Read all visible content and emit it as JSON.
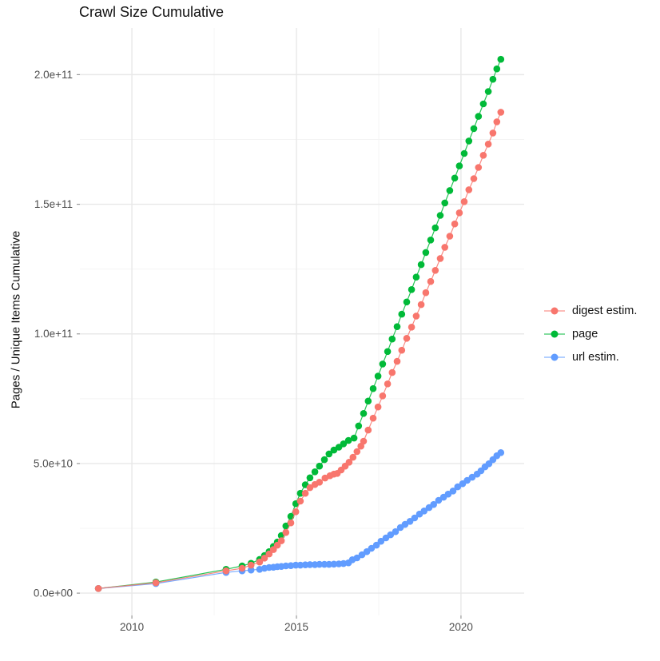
{
  "chart_data": {
    "type": "scatter",
    "title": "Crawl Size Cumulative",
    "xlabel": "",
    "ylabel": "Pages / Unique Items Cumulative",
    "xlim": [
      2008.42,
      2021.92
    ],
    "ylim": [
      -8600000000.0,
      218000000000.0
    ],
    "grid": true,
    "legend_position": "right",
    "x_ticks": [
      {
        "value": 2010,
        "label": "2010"
      },
      {
        "value": 2015,
        "label": "2015"
      },
      {
        "value": 2020,
        "label": "2020"
      }
    ],
    "x_minor_ticks": [
      2012.5,
      2017.5
    ],
    "y_ticks": [
      {
        "value": 0,
        "label": "0.0e+00"
      },
      {
        "value": 50000000000.0,
        "label": "5.0e+10"
      },
      {
        "value": 100000000000.0,
        "label": "1.0e+11"
      },
      {
        "value": 150000000000.0,
        "label": "1.5e+11"
      },
      {
        "value": 200000000000.0,
        "label": "2.0e+11"
      }
    ],
    "y_minor_ticks": [
      25000000000.0,
      75000000000.0,
      125000000000.0,
      175000000000.0
    ],
    "colors": {
      "digest": "#F8766D",
      "page": "#00BA38",
      "url": "#619CFF",
      "grid_major": "#e8e8e8",
      "grid_minor": "#f4f4f4",
      "tick": "#999999",
      "tick_label": "#4d4d4d",
      "text": "#111111"
    },
    "legend": [
      {
        "label": "digest estim.",
        "color": "#F8766D"
      },
      {
        "label": "page",
        "color": "#00BA38"
      },
      {
        "label": "url estim.",
        "color": "#619CFF"
      }
    ],
    "series": [
      {
        "name": "page",
        "color": "#00BA38",
        "points": [
          [
            2008.98,
            1800000000.0
          ],
          [
            2010.73,
            4300000000.0
          ],
          [
            2012.86,
            9200000000.0
          ],
          [
            2013.35,
            10500000000.0
          ],
          [
            2013.62,
            11500000000.0
          ],
          [
            2013.88,
            13000000000.0
          ],
          [
            2014.03,
            14500000000.0
          ],
          [
            2014.17,
            16000000000.0
          ],
          [
            2014.3,
            18000000000.0
          ],
          [
            2014.42,
            19700000000.0
          ],
          [
            2014.54,
            22200000000.0
          ],
          [
            2014.68,
            25900000000.0
          ],
          [
            2014.83,
            29600000000.0
          ],
          [
            2014.98,
            34500000000.0
          ],
          [
            2015.12,
            38500000000.0
          ],
          [
            2015.27,
            41800000000.0
          ],
          [
            2015.41,
            44500000000.0
          ],
          [
            2015.56,
            46800000000.0
          ],
          [
            2015.7,
            49000000000.0
          ],
          [
            2015.85,
            51500000000.0
          ],
          [
            2015.99,
            53700000000.0
          ],
          [
            2016.14,
            55200000000.0
          ],
          [
            2016.29,
            56300000000.0
          ],
          [
            2016.43,
            57600000000.0
          ],
          [
            2016.58,
            58900000000.0
          ],
          [
            2016.75,
            59800000000.0
          ],
          [
            2016.89,
            64500000000.0
          ],
          [
            2017.04,
            69300000000.0
          ],
          [
            2017.18,
            74100000000.0
          ],
          [
            2017.33,
            78900000000.0
          ],
          [
            2017.48,
            83700000000.0
          ],
          [
            2017.62,
            88400000000.0
          ],
          [
            2017.77,
            93200000000.0
          ],
          [
            2017.91,
            98000000000.0
          ],
          [
            2018.06,
            102800000000.0
          ],
          [
            2018.2,
            107600000000.0
          ],
          [
            2018.35,
            112300000000.0
          ],
          [
            2018.5,
            117100000000.0
          ],
          [
            2018.64,
            121900000000.0
          ],
          [
            2018.79,
            126700000000.0
          ],
          [
            2018.93,
            131400000000.0
          ],
          [
            2019.08,
            136200000000.0
          ],
          [
            2019.22,
            140900000000.0
          ],
          [
            2019.37,
            145700000000.0
          ],
          [
            2019.51,
            150500000000.0
          ],
          [
            2019.66,
            155300000000.0
          ],
          [
            2019.81,
            160100000000.0
          ],
          [
            2019.95,
            164800000000.0
          ],
          [
            2020.1,
            169600000000.0
          ],
          [
            2020.24,
            174400000000.0
          ],
          [
            2020.39,
            179200000000.0
          ],
          [
            2020.53,
            183900000000.0
          ],
          [
            2020.68,
            188700000000.0
          ],
          [
            2020.83,
            193500000000.0
          ],
          [
            2020.97,
            198200000000.0
          ],
          [
            2021.09,
            202200000000.0
          ],
          [
            2021.21,
            205900000000.0
          ]
        ]
      },
      {
        "name": "url estim.",
        "color": "#619CFF",
        "points": [
          [
            2008.98,
            1800000000.0
          ],
          [
            2010.73,
            3700000000.0
          ],
          [
            2012.86,
            8000000000.0
          ],
          [
            2013.35,
            8600000000.0
          ],
          [
            2013.62,
            8900000000.0
          ],
          [
            2013.88,
            9200000000.0
          ],
          [
            2014.03,
            9600000000.0
          ],
          [
            2014.17,
            9900000000.0
          ],
          [
            2014.3,
            10000000000.0
          ],
          [
            2014.42,
            10200000000.0
          ],
          [
            2014.54,
            10300000000.0
          ],
          [
            2014.68,
            10500000000.0
          ],
          [
            2014.83,
            10600000000.0
          ],
          [
            2014.98,
            10800000000.0
          ],
          [
            2015.12,
            10800000000.0
          ],
          [
            2015.27,
            10900000000.0
          ],
          [
            2015.41,
            11000000000.0
          ],
          [
            2015.56,
            11000000000.0
          ],
          [
            2015.7,
            11100000000.0
          ],
          [
            2015.85,
            11100000000.0
          ],
          [
            2015.99,
            11100000000.0
          ],
          [
            2016.14,
            11200000000.0
          ],
          [
            2016.29,
            11300000000.0
          ],
          [
            2016.43,
            11400000000.0
          ],
          [
            2016.58,
            11700000000.0
          ],
          [
            2016.7,
            12900000000.0
          ],
          [
            2016.84,
            13600000000.0
          ],
          [
            2016.99,
            14800000000.0
          ],
          [
            2017.14,
            16000000000.0
          ],
          [
            2017.28,
            17300000000.0
          ],
          [
            2017.43,
            18500000000.0
          ],
          [
            2017.57,
            20000000000.0
          ],
          [
            2017.72,
            21300000000.0
          ],
          [
            2017.86,
            22500000000.0
          ],
          [
            2018.01,
            23700000000.0
          ],
          [
            2018.16,
            25300000000.0
          ],
          [
            2018.3,
            26500000000.0
          ],
          [
            2018.45,
            27700000000.0
          ],
          [
            2018.59,
            29000000000.0
          ],
          [
            2018.74,
            30500000000.0
          ],
          [
            2018.88,
            31700000000.0
          ],
          [
            2019.03,
            33000000000.0
          ],
          [
            2019.17,
            34200000000.0
          ],
          [
            2019.32,
            35800000000.0
          ],
          [
            2019.47,
            37000000000.0
          ],
          [
            2019.61,
            38200000000.0
          ],
          [
            2019.76,
            39400000000.0
          ],
          [
            2019.9,
            41000000000.0
          ],
          [
            2020.05,
            42200000000.0
          ],
          [
            2020.19,
            43500000000.0
          ],
          [
            2020.34,
            44700000000.0
          ],
          [
            2020.49,
            45900000000.0
          ],
          [
            2020.61,
            47200000000.0
          ],
          [
            2020.73,
            48700000000.0
          ],
          [
            2020.85,
            49900000000.0
          ],
          [
            2020.97,
            51500000000.0
          ],
          [
            2021.09,
            53000000000.0
          ],
          [
            2021.21,
            54200000000.0
          ]
        ]
      },
      {
        "name": "digest estim.",
        "color": "#F8766D",
        "points": [
          [
            2008.98,
            1800000000.0
          ],
          [
            2010.73,
            4000000000.0
          ],
          [
            2012.86,
            8600000000.0
          ],
          [
            2013.35,
            9600000000.0
          ],
          [
            2013.62,
            10800000000.0
          ],
          [
            2013.88,
            12000000000.0
          ],
          [
            2014.03,
            13500000000.0
          ],
          [
            2014.17,
            15100000000.0
          ],
          [
            2014.3,
            16800000000.0
          ],
          [
            2014.42,
            18500000000.0
          ],
          [
            2014.54,
            20200000000.0
          ],
          [
            2014.68,
            23400000000.0
          ],
          [
            2014.83,
            27100000000.0
          ],
          [
            2014.98,
            31400000000.0
          ],
          [
            2015.12,
            35500000000.0
          ],
          [
            2015.27,
            38500000000.0
          ],
          [
            2015.41,
            40700000000.0
          ],
          [
            2015.56,
            41900000000.0
          ],
          [
            2015.7,
            42800000000.0
          ],
          [
            2015.87,
            44400000000.0
          ],
          [
            2016.02,
            45300000000.0
          ],
          [
            2016.14,
            45900000000.0
          ],
          [
            2016.24,
            46200000000.0
          ],
          [
            2016.36,
            47500000000.0
          ],
          [
            2016.48,
            49000000000.0
          ],
          [
            2016.6,
            50500000000.0
          ],
          [
            2016.72,
            52400000000.0
          ],
          [
            2016.84,
            54600000000.0
          ],
          [
            2016.96,
            56700000000.0
          ],
          [
            2017.04,
            58600000000.0
          ],
          [
            2017.18,
            62900000000.0
          ],
          [
            2017.33,
            67500000000.0
          ],
          [
            2017.48,
            71800000000.0
          ],
          [
            2017.62,
            76100000000.0
          ],
          [
            2017.77,
            80700000000.0
          ],
          [
            2017.91,
            85100000000.0
          ],
          [
            2018.06,
            89400000000.0
          ],
          [
            2018.2,
            93700000000.0
          ],
          [
            2018.35,
            98300000000.0
          ],
          [
            2018.5,
            102600000000.0
          ],
          [
            2018.64,
            106900000000.0
          ],
          [
            2018.79,
            111300000000.0
          ],
          [
            2018.93,
            115900000000.0
          ],
          [
            2019.08,
            120200000000.0
          ],
          [
            2019.22,
            124500000000.0
          ],
          [
            2019.37,
            129100000000.0
          ],
          [
            2019.51,
            133400000000.0
          ],
          [
            2019.66,
            137700000000.0
          ],
          [
            2019.81,
            142400000000.0
          ],
          [
            2019.95,
            146700000000.0
          ],
          [
            2020.1,
            151000000000.0
          ],
          [
            2020.24,
            155600000000.0
          ],
          [
            2020.39,
            159900000000.0
          ],
          [
            2020.53,
            164200000000.0
          ],
          [
            2020.68,
            168900000000.0
          ],
          [
            2020.83,
            173200000000.0
          ],
          [
            2020.97,
            177500000000.0
          ],
          [
            2021.09,
            181800000000.0
          ],
          [
            2021.21,
            185500000000.0
          ]
        ]
      }
    ]
  }
}
